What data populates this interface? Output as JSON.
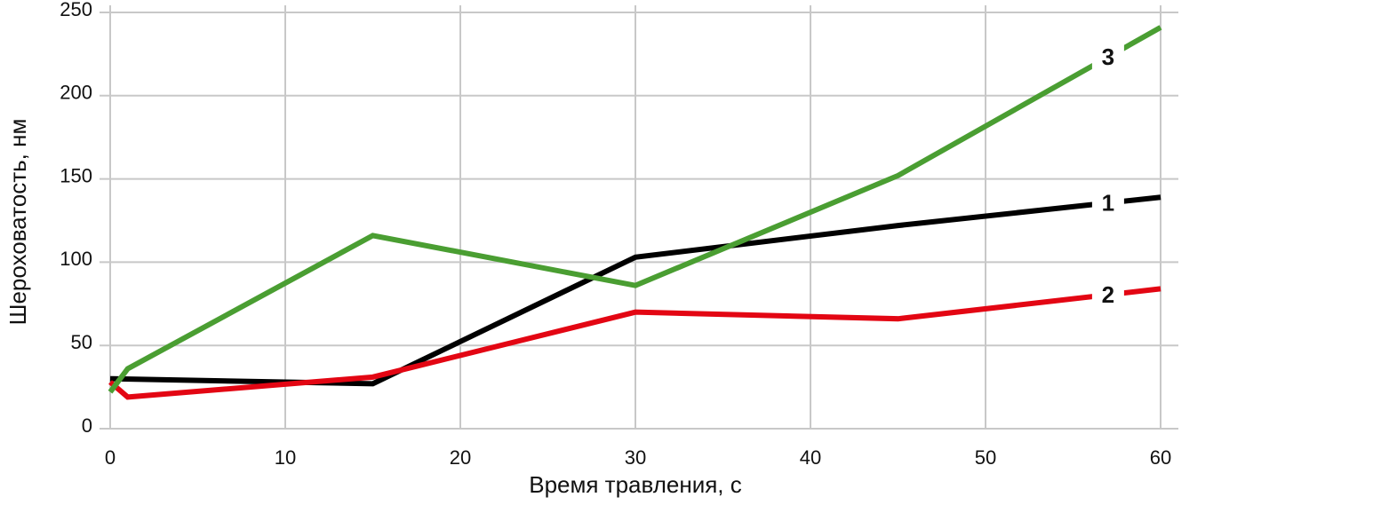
{
  "chart_data": {
    "type": "line",
    "x_label": "Время травления, с",
    "y_label": "Шероховатость, нм",
    "xlim": [
      0,
      60
    ],
    "xticks": [
      0,
      10,
      20,
      30,
      40,
      50,
      60
    ],
    "ylim": [
      0,
      250
    ],
    "yticks": [
      0,
      50,
      100,
      150,
      200,
      250
    ],
    "grid": true,
    "series": [
      {
        "name": "1",
        "color": "#000000",
        "x": [
          0,
          15,
          30,
          45,
          60
        ],
        "values": [
          30,
          27,
          103,
          122,
          139
        ]
      },
      {
        "name": "2",
        "color": "#e30613",
        "x": [
          0,
          1,
          15,
          30,
          45,
          60
        ],
        "values": [
          28,
          19,
          31,
          70,
          66,
          84
        ]
      },
      {
        "name": "3",
        "color": "#4a9e32",
        "x": [
          0,
          1,
          15,
          30,
          45,
          60
        ],
        "values": [
          22,
          36,
          116,
          86,
          152,
          241
        ]
      }
    ]
  }
}
